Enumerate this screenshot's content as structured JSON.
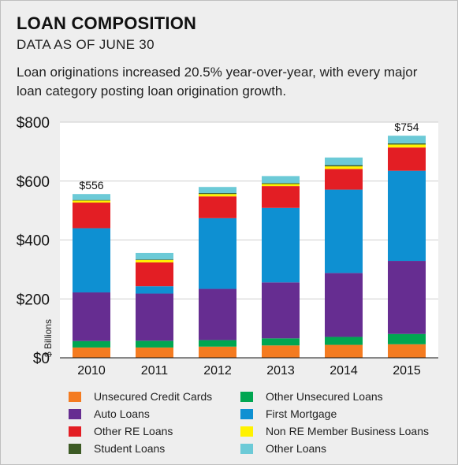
{
  "header": {
    "title": "LOAN COMPOSITION",
    "subtitle": "DATA AS OF JUNE 30",
    "description": "Loan originations increased 20.5% year-over-year, with every major loan category posting loan origination growth."
  },
  "chart_data": {
    "type": "bar",
    "stacked": true,
    "categories": [
      "2010",
      "2011",
      "2012",
      "2013",
      "2014",
      "2015"
    ],
    "ylabel": "$ Billions",
    "ylim": [
      0,
      800
    ],
    "yticks": [
      0,
      200,
      400,
      600,
      800
    ],
    "ytick_labels": [
      "$0",
      "$200",
      "$400",
      "$600",
      "$800"
    ],
    "grid": true,
    "legend_position": "bottom",
    "annotations": [
      {
        "category": "2010",
        "label": "$556"
      },
      {
        "category": "2015",
        "label": "$754"
      }
    ],
    "series": [
      {
        "name": "Unsecured Credit Cards",
        "color": "#f47b20",
        "values": [
          35,
          35,
          38,
          42,
          44,
          46
        ]
      },
      {
        "name": "Other Unsecured Loans",
        "color": "#00a651",
        "values": [
          22,
          23,
          22,
          24,
          27,
          35
        ]
      },
      {
        "name": "Auto Loans",
        "color": "#662d91",
        "values": [
          165,
          160,
          174,
          190,
          217,
          248
        ]
      },
      {
        "name": "First Mortgage",
        "color": "#0e90d2",
        "values": [
          218,
          25,
          240,
          253,
          283,
          306
        ]
      },
      {
        "name": "Other RE Loans",
        "color": "#e31e24",
        "values": [
          87,
          81,
          74,
          74,
          70,
          79
        ]
      },
      {
        "name": "Non RE Member Business Loans",
        "color": "#fff200",
        "values": [
          7,
          8,
          8,
          7,
          9,
          10
        ]
      },
      {
        "name": "Student Loans",
        "color": "#3c5a24",
        "values": [
          2,
          2,
          3,
          3,
          4,
          4
        ]
      },
      {
        "name": "Other Loans",
        "color": "#6ccad7",
        "values": [
          20,
          22,
          21,
          24,
          26,
          26
        ]
      }
    ]
  },
  "legend": {
    "items": [
      {
        "label": "Unsecured Credit Cards",
        "color": "#f47b20"
      },
      {
        "label": "Other Unsecured Loans",
        "color": "#00a651"
      },
      {
        "label": "Auto Loans",
        "color": "#662d91"
      },
      {
        "label": "First Mortgage",
        "color": "#0e90d2"
      },
      {
        "label": "Other RE Loans",
        "color": "#e31e24"
      },
      {
        "label": "Non RE Member Business Loans",
        "color": "#fff200"
      },
      {
        "label": "Student Loans",
        "color": "#3c5a24"
      },
      {
        "label": "Other Loans",
        "color": "#6ccad7"
      }
    ]
  }
}
